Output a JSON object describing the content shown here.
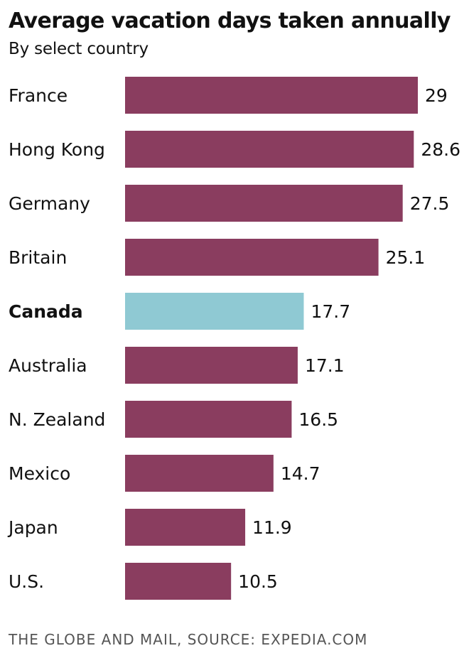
{
  "chart_data": {
    "type": "bar",
    "orientation": "horizontal",
    "title": "Average vacation days taken annually",
    "subtitle": "By select country",
    "categories": [
      "France",
      "Hong Kong",
      "Germany",
      "Britain",
      "Canada",
      "Australia",
      "N. Zealand",
      "Mexico",
      "Japan",
      "U.S."
    ],
    "values": [
      29,
      28.6,
      27.5,
      25.1,
      17.7,
      17.1,
      16.5,
      14.7,
      11.9,
      10.5
    ],
    "value_labels": [
      "29",
      "28.6",
      "27.5",
      "25.1",
      "17.7",
      "17.1",
      "16.5",
      "14.7",
      "11.9",
      "10.5"
    ],
    "highlight_category": "Canada",
    "xlim": [
      0,
      29
    ],
    "grid": false,
    "legend": "none"
  },
  "colors": {
    "bar": "#8a3d5f",
    "highlight": "#8fc9d3",
    "text": "#111111",
    "source": "#555555"
  },
  "source": "THE GLOBE AND MAIL, SOURCE: EXPEDIA.COM"
}
